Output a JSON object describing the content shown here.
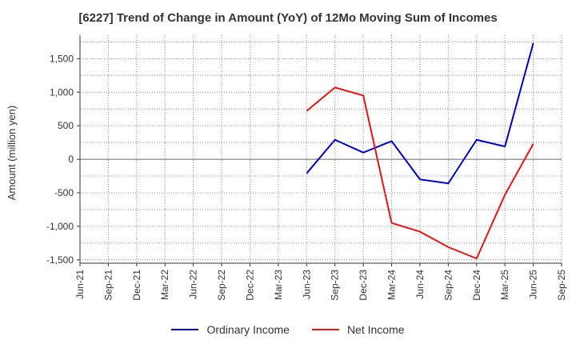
{
  "title": "[6227]  Trend of Change in Amount (YoY) of 12Mo Moving Sum of Incomes",
  "chart_data": {
    "type": "line",
    "title": "[6227]  Trend of Change in Amount (YoY) of 12Mo Moving Sum of Incomes",
    "ylabel": "Amount (million yen)",
    "xlabel": "",
    "x_ticks": [
      "Jun-21",
      "Sep-21",
      "Dec-21",
      "Mar-22",
      "Jun-22",
      "Sep-22",
      "Dec-22",
      "Mar-23",
      "Jun-23",
      "Sep-23",
      "Dec-23",
      "Mar-24",
      "Jun-24",
      "Sep-24",
      "Dec-24",
      "Mar-25",
      "Jun-25",
      "Sep-25"
    ],
    "y_ticks": [
      1500,
      1000,
      500,
      0,
      -500,
      -1000,
      -1500
    ],
    "y_tick_labels": [
      "1,500",
      "1,000",
      "500",
      "0",
      "-500",
      "-1,000",
      "-1,500"
    ],
    "ylim": [
      -1550,
      1850
    ],
    "grid": true,
    "legend_position": "bottom",
    "series": [
      {
        "name": "Ordinary Income",
        "color": "#0000cc",
        "x": [
          "Jun-23",
          "Sep-23",
          "Dec-23",
          "Mar-24",
          "Jun-24",
          "Sep-24",
          "Dec-24",
          "Mar-25",
          "Jun-25"
        ],
        "values": [
          -210,
          290,
          100,
          270,
          -300,
          -360,
          290,
          190,
          1730
        ]
      },
      {
        "name": "Net Income",
        "color": "#ee1111",
        "x": [
          "Jun-23",
          "Sep-23",
          "Dec-23",
          "Mar-24",
          "Jun-24",
          "Sep-24",
          "Dec-24",
          "Mar-25",
          "Jun-25"
        ],
        "values": [
          720,
          1070,
          950,
          -950,
          -1080,
          -1310,
          -1480,
          -530,
          230
        ]
      }
    ]
  }
}
